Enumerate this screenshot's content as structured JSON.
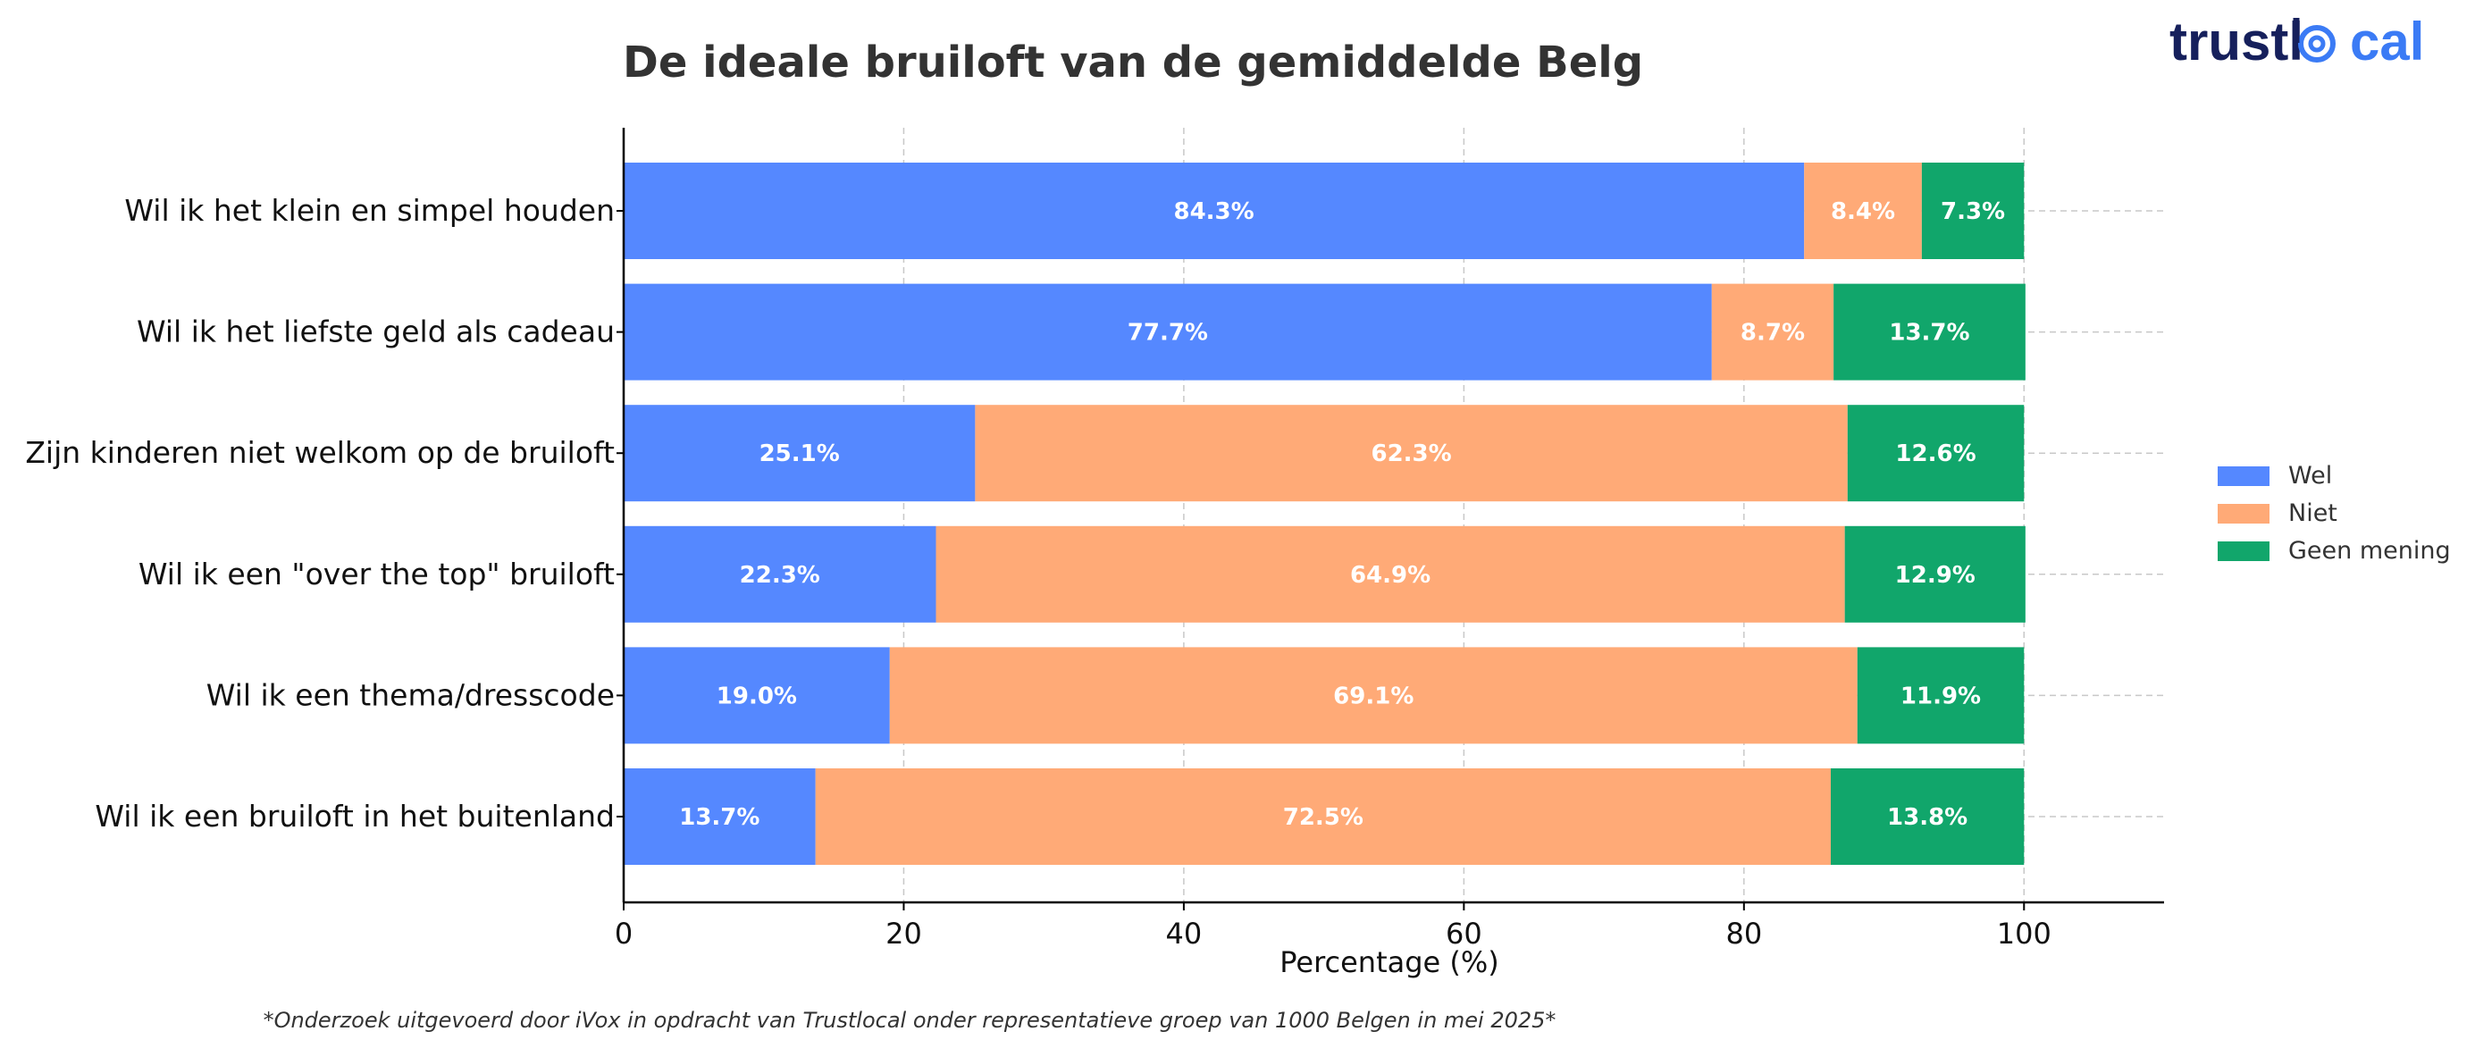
{
  "chart_data": {
    "type": "bar",
    "orientation": "horizontal",
    "stacked": true,
    "title": "De ideale bruiloft van de gemiddelde Belg",
    "xlabel": "Percentage (%)",
    "ylabel": "",
    "xlim": [
      0,
      110
    ],
    "xticks": [
      0,
      20,
      40,
      60,
      80,
      100
    ],
    "grid": true,
    "legend_position": "right",
    "categories": [
      "Wil ik het klein en simpel houden",
      "Wil ik het liefste geld als cadeau",
      "Zijn kinderen niet welkom op de bruiloft",
      "Wil ik een \"over the top\" bruiloft",
      "Wil ik een thema/dresscode",
      "Wil ik een bruiloft in het buitenland"
    ],
    "series": [
      {
        "name": "Wel",
        "color": "#5588FF",
        "values": [
          84.3,
          77.7,
          25.1,
          22.3,
          19.0,
          13.7
        ]
      },
      {
        "name": "Niet",
        "color": "#FFAA77",
        "values": [
          8.4,
          8.7,
          62.3,
          64.9,
          69.1,
          72.5
        ]
      },
      {
        "name": "Geen mening",
        "color": "#11A66B",
        "values": [
          7.3,
          13.7,
          12.6,
          12.9,
          11.9,
          13.8
        ]
      }
    ],
    "footnote": "*Onderzoek uitgevoerd door iVox in opdracht van Trustlocal onder representatieve groep van 1000 Belgen in mei 2025*"
  },
  "logo": {
    "text_dark": "trustl",
    "text_blue": "cal",
    "color_dark": "#16205C",
    "color_blue": "#3B7BF5"
  }
}
